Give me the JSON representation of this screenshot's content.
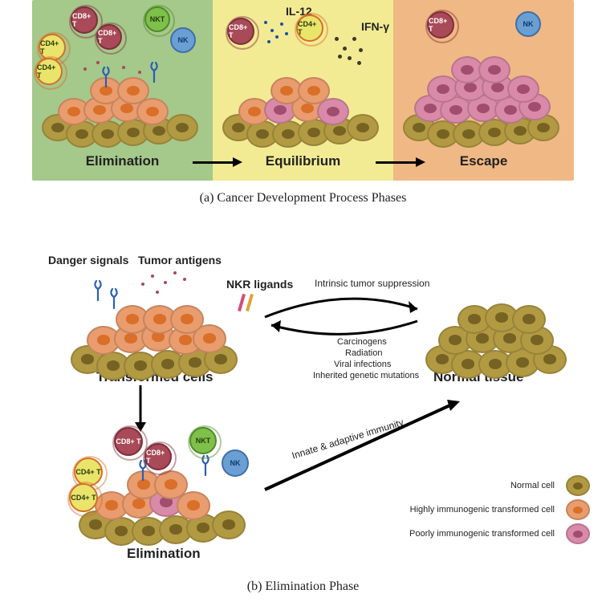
{
  "colors": {
    "panel_elimination": "#a5c88b",
    "panel_equilibrium": "#f2eb94",
    "panel_escape": "#f0b884",
    "normal_cell": "#b29a43",
    "normal_cell_border": "#7a6828",
    "high_imm_cell": "#e99c6e",
    "high_imm_nuc": "#d96f28",
    "poor_imm_cell": "#d98aa9",
    "poor_imm_nuc": "#a14d70",
    "cd8": "#a84a58",
    "cd8_border": "#7e2e3a",
    "cd4": "#e9e46a",
    "cd4_border": "#d56f28",
    "nkt": "#7dc04a",
    "nkt_border": "#4f8a28",
    "nk": "#6a9fd4",
    "nk_border": "#3f6fa8",
    "ifn_dot": "#3a3a2a",
    "il12_dot": "#1a4fa8",
    "danger_line": "#2a5fb5",
    "nkr1": "#d14f7a",
    "nkr2": "#e0a33a"
  },
  "typography": {
    "phase_label_size": 17,
    "caption_size": 16,
    "bold_label_size": 16,
    "small_label_size": 12,
    "legend_size": 11,
    "immune_cell_font": 9
  },
  "panel_a": {
    "phases": [
      "Elimination",
      "Equilibrium",
      "Escape"
    ],
    "caption": "(a) Cancer Development Process Phases",
    "labels": {
      "il12": "IL-12",
      "ifng": "IFN-γ"
    },
    "immune_cells": {
      "cd8": "CD8+ T",
      "cd4": "CD4+ T",
      "nkt": "NKT",
      "nk": "NK"
    }
  },
  "panel_b": {
    "caption": "(b) Elimination Phase",
    "labels": {
      "danger": "Danger signals",
      "antigens": "Tumor antigens",
      "nkr": "NKR ligands",
      "transformed": "Transformed cells",
      "normal": "Normal tissue",
      "elimination": "Elimination",
      "innate": "Innate & adaptive immunity",
      "intrinsic": "Intrinsic tumor suppression",
      "factors": [
        "Carcinogens",
        "Radiation",
        "Viral infections",
        "Inherited genetic mutations"
      ]
    },
    "immune_cells": {
      "cd8": "CD8+ T",
      "cd4": "CD4+ T",
      "nkt": "NKT",
      "nk": "NK"
    }
  },
  "legend": {
    "rows": [
      {
        "label": "Normal cell",
        "type": "normal"
      },
      {
        "label": "Highly immunogenic transformed cell",
        "type": "high"
      },
      {
        "label": "Poorly immunogenic transformed cell",
        "type": "poor"
      }
    ]
  }
}
